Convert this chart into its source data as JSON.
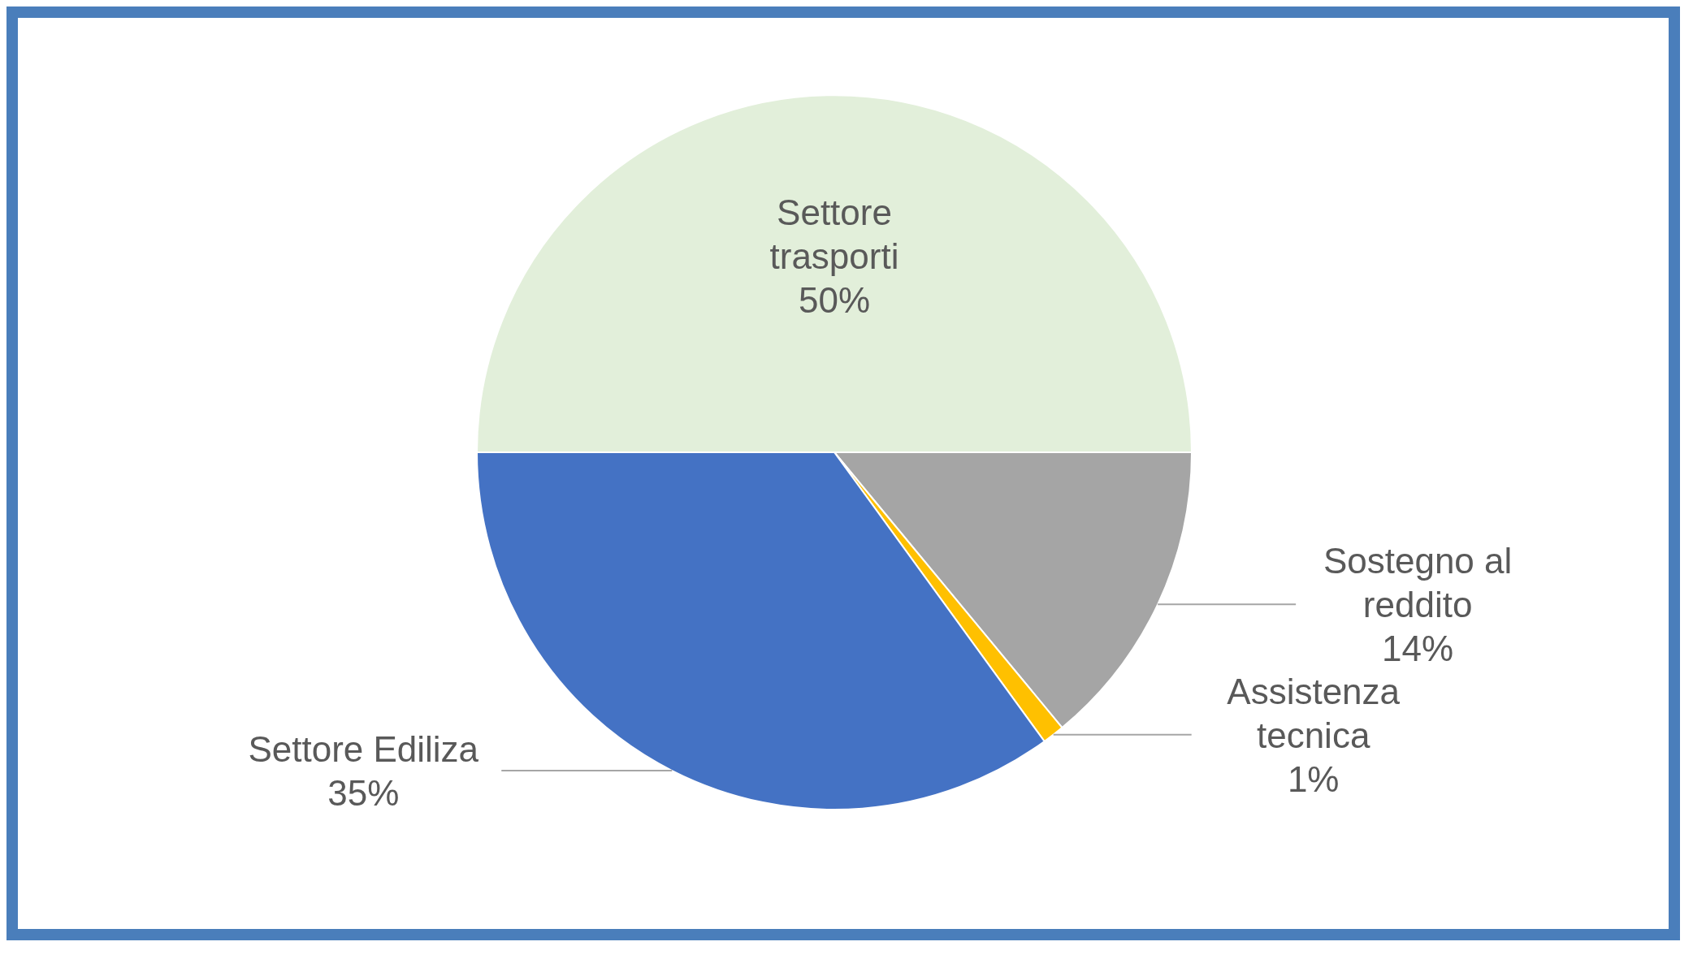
{
  "chart_data": {
    "type": "pie",
    "categories": [
      "Settore trasporti",
      "Sostegno al reddito",
      "Assistenza tecnica",
      "Settore Ediliza"
    ],
    "values": [
      50,
      14,
      1,
      35
    ],
    "colors": [
      "#e2efda",
      "#a5a5a5",
      "#ffc000",
      "#4472c4"
    ],
    "value_labels": [
      "50%",
      "14%",
      "1%",
      "35%"
    ],
    "legend": false
  }
}
